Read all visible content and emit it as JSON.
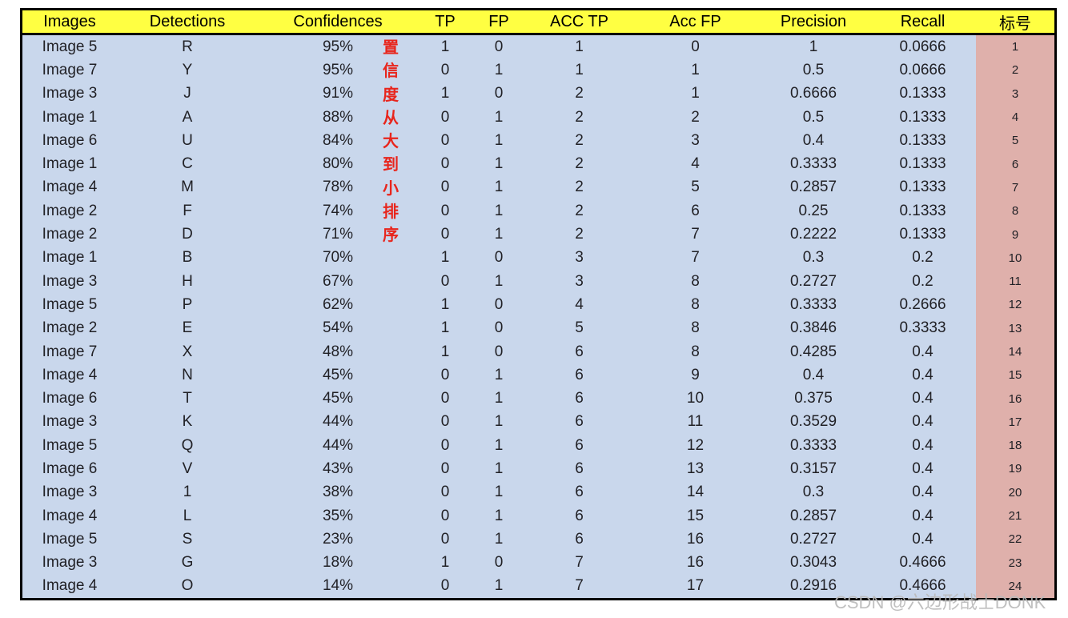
{
  "chart_data": {
    "type": "table",
    "title": "",
    "columns": [
      "Images",
      "Detections",
      "Confidences",
      "TP",
      "FP",
      "ACC TP",
      "Acc FP",
      "Precision",
      "Recall",
      "标号"
    ],
    "rows": [
      [
        "Image 5",
        "R",
        "95%",
        "1",
        "0",
        "1",
        "0",
        "1",
        "0.0666",
        "1"
      ],
      [
        "Image 7",
        "Y",
        "95%",
        "0",
        "1",
        "1",
        "1",
        "0.5",
        "0.0666",
        "2"
      ],
      [
        "Image 3",
        "J",
        "91%",
        "1",
        "0",
        "2",
        "1",
        "0.6666",
        "0.1333",
        "3"
      ],
      [
        "Image 1",
        "A",
        "88%",
        "0",
        "1",
        "2",
        "2",
        "0.5",
        "0.1333",
        "4"
      ],
      [
        "Image 6",
        "U",
        "84%",
        "0",
        "1",
        "2",
        "3",
        "0.4",
        "0.1333",
        "5"
      ],
      [
        "Image 1",
        "C",
        "80%",
        "0",
        "1",
        "2",
        "4",
        "0.3333",
        "0.1333",
        "6"
      ],
      [
        "Image 4",
        "M",
        "78%",
        "0",
        "1",
        "2",
        "5",
        "0.2857",
        "0.1333",
        "7"
      ],
      [
        "Image 2",
        "F",
        "74%",
        "0",
        "1",
        "2",
        "6",
        "0.25",
        "0.1333",
        "8"
      ],
      [
        "Image 2",
        "D",
        "71%",
        "0",
        "1",
        "2",
        "7",
        "0.2222",
        "0.1333",
        "9"
      ],
      [
        "Image 1",
        "B",
        "70%",
        "1",
        "0",
        "3",
        "7",
        "0.3",
        "0.2",
        "10"
      ],
      [
        "Image 3",
        "H",
        "67%",
        "0",
        "1",
        "3",
        "8",
        "0.2727",
        "0.2",
        "11"
      ],
      [
        "Image 5",
        "P",
        "62%",
        "1",
        "0",
        "4",
        "8",
        "0.3333",
        "0.2666",
        "12"
      ],
      [
        "Image 2",
        "E",
        "54%",
        "1",
        "0",
        "5",
        "8",
        "0.3846",
        "0.3333",
        "13"
      ],
      [
        "Image 7",
        "X",
        "48%",
        "1",
        "0",
        "6",
        "8",
        "0.4285",
        "0.4",
        "14"
      ],
      [
        "Image 4",
        "N",
        "45%",
        "0",
        "1",
        "6",
        "9",
        "0.4",
        "0.4",
        "15"
      ],
      [
        "Image 6",
        "T",
        "45%",
        "0",
        "1",
        "6",
        "10",
        "0.375",
        "0.4",
        "16"
      ],
      [
        "Image 3",
        "K",
        "44%",
        "0",
        "1",
        "6",
        "11",
        "0.3529",
        "0.4",
        "17"
      ],
      [
        "Image 5",
        "Q",
        "44%",
        "0",
        "1",
        "6",
        "12",
        "0.3333",
        "0.4",
        "18"
      ],
      [
        "Image 6",
        "V",
        "43%",
        "0",
        "1",
        "6",
        "13",
        "0.3157",
        "0.4",
        "19"
      ],
      [
        "Image 3",
        "1",
        "38%",
        "0",
        "1",
        "6",
        "14",
        "0.3",
        "0.4",
        "20"
      ],
      [
        "Image 4",
        "L",
        "35%",
        "0",
        "1",
        "6",
        "15",
        "0.2857",
        "0.4",
        "21"
      ],
      [
        "Image 5",
        "S",
        "23%",
        "0",
        "1",
        "6",
        "16",
        "0.2727",
        "0.4",
        "22"
      ],
      [
        "Image 3",
        "G",
        "18%",
        "1",
        "0",
        "7",
        "16",
        "0.3043",
        "0.4666",
        "23"
      ],
      [
        "Image 4",
        "O",
        "14%",
        "0",
        "1",
        "7",
        "17",
        "0.2916",
        "0.4666",
        "24"
      ]
    ],
    "layout_hints": {
      "header_background": "#ffff42",
      "body_background": "#c9d7ec",
      "tag_column_background": "#dfb0ab",
      "grid": "off",
      "outer_border": "#000000"
    }
  },
  "annotation": {
    "text": "置信度从大到小排序",
    "orientation": "vertical",
    "color": "#e8251c"
  },
  "watermark": {
    "text": "CSDN @六边形战士DONK",
    "color": "#bbbbbb"
  },
  "colors": {
    "header_yellow": "#ffff42",
    "body_blue": "#c9d7ec",
    "tag_pink": "#dfb0ab",
    "annotation_red": "#e8251c",
    "border_black": "#000000",
    "text_dark": "#212126"
  }
}
